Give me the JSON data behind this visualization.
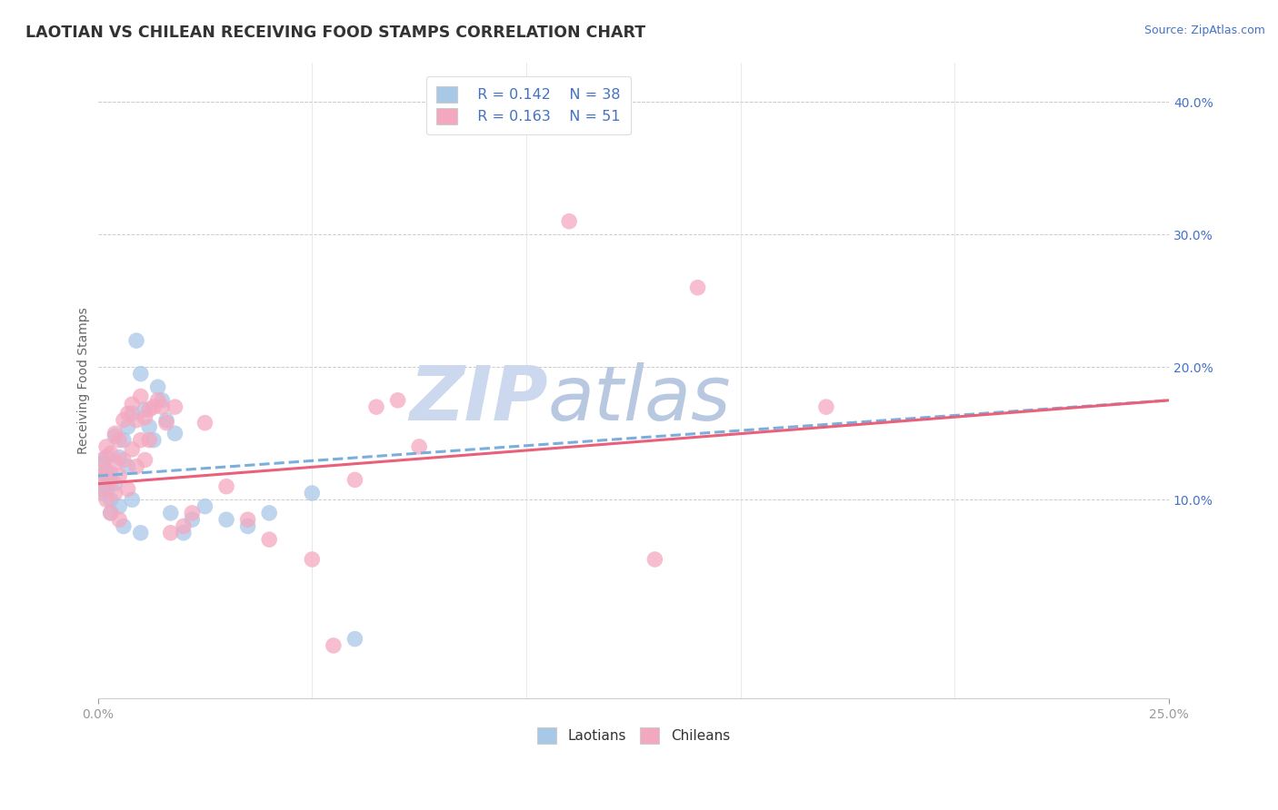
{
  "title": "LAOTIAN VS CHILEAN RECEIVING FOOD STAMPS CORRELATION CHART",
  "source_text": "Source: ZipAtlas.com",
  "ylabel": "Receiving Food Stamps",
  "ytick_values": [
    0.1,
    0.2,
    0.3,
    0.4
  ],
  "xlim": [
    0.0,
    0.25
  ],
  "ylim": [
    -0.05,
    0.43
  ],
  "legend_r1": "R = 0.142",
  "legend_n1": "N = 38",
  "legend_r2": "R = 0.163",
  "legend_n2": "N = 51",
  "laotian_color": "#a8c8e8",
  "chilean_color": "#f4a8c0",
  "laotian_line_color": "#7aaedc",
  "chilean_line_color": "#e8607a",
  "watermark_color": "#ccd8ee",
  "laotian_x": [
    0.001,
    0.001,
    0.001,
    0.002,
    0.002,
    0.002,
    0.003,
    0.003,
    0.003,
    0.004,
    0.004,
    0.005,
    0.005,
    0.006,
    0.006,
    0.007,
    0.007,
    0.008,
    0.008,
    0.009,
    0.01,
    0.01,
    0.011,
    0.012,
    0.013,
    0.014,
    0.015,
    0.016,
    0.017,
    0.018,
    0.02,
    0.022,
    0.025,
    0.03,
    0.035,
    0.04,
    0.05,
    0.06
  ],
  "laotian_y": [
    0.127,
    0.115,
    0.105,
    0.132,
    0.118,
    0.108,
    0.12,
    0.1,
    0.09,
    0.148,
    0.112,
    0.132,
    0.095,
    0.145,
    0.08,
    0.155,
    0.125,
    0.165,
    0.1,
    0.22,
    0.195,
    0.075,
    0.168,
    0.155,
    0.145,
    0.185,
    0.175,
    0.16,
    0.09,
    0.15,
    0.075,
    0.085,
    0.095,
    0.085,
    0.08,
    0.09,
    0.105,
    -0.005
  ],
  "chilean_x": [
    0.001,
    0.001,
    0.001,
    0.002,
    0.002,
    0.002,
    0.003,
    0.003,
    0.003,
    0.004,
    0.004,
    0.004,
    0.005,
    0.005,
    0.005,
    0.006,
    0.006,
    0.007,
    0.007,
    0.008,
    0.008,
    0.009,
    0.009,
    0.01,
    0.01,
    0.011,
    0.011,
    0.012,
    0.012,
    0.013,
    0.014,
    0.015,
    0.016,
    0.017,
    0.018,
    0.02,
    0.022,
    0.025,
    0.03,
    0.035,
    0.04,
    0.05,
    0.055,
    0.06,
    0.065,
    0.07,
    0.075,
    0.11,
    0.13,
    0.14,
    0.17
  ],
  "chilean_y": [
    0.13,
    0.118,
    0.108,
    0.14,
    0.122,
    0.1,
    0.135,
    0.115,
    0.09,
    0.15,
    0.128,
    0.105,
    0.145,
    0.118,
    0.085,
    0.16,
    0.13,
    0.165,
    0.108,
    0.172,
    0.138,
    0.16,
    0.125,
    0.178,
    0.145,
    0.162,
    0.13,
    0.168,
    0.145,
    0.17,
    0.175,
    0.17,
    0.158,
    0.075,
    0.17,
    0.08,
    0.09,
    0.158,
    0.11,
    0.085,
    0.07,
    0.055,
    -0.01,
    0.115,
    0.17,
    0.175,
    0.14,
    0.31,
    0.055,
    0.26,
    0.17
  ],
  "trend_lao_x0": 0.0,
  "trend_lao_y0": 0.118,
  "trend_lao_x1": 0.25,
  "trend_lao_y1": 0.175,
  "trend_chi_x0": 0.0,
  "trend_chi_y0": 0.112,
  "trend_chi_x1": 0.25,
  "trend_chi_y1": 0.175
}
